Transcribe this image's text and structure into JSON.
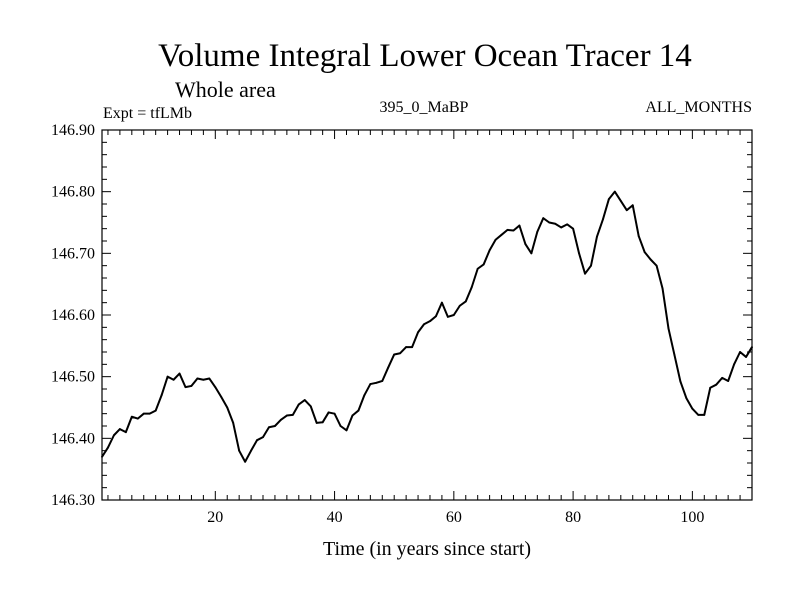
{
  "chart_data": {
    "type": "line",
    "title": "Volume Integral Lower Ocean Tracer 14",
    "subtitle": "Whole area",
    "expt_label": "Expt = tfLMb",
    "period_label": "395_0_MaBP",
    "months_label": "ALL_MONTHS",
    "xlabel": "Time (in years since start)",
    "ylabel": "",
    "xlim": [
      1,
      110
    ],
    "ylim": [
      146.3,
      146.9
    ],
    "x_ticks": [
      20,
      40,
      60,
      80,
      100
    ],
    "y_ticks": [
      146.3,
      146.4,
      146.5,
      146.6,
      146.7,
      146.8,
      146.9
    ],
    "x_tick_labels": [
      "20",
      "40",
      "60",
      "80",
      "100"
    ],
    "y_tick_labels": [
      "146.30",
      "146.40",
      "146.50",
      "146.60",
      "146.70",
      "146.80",
      "146.90"
    ],
    "series": [
      {
        "name": "Volume Integral Lower Ocean Tracer 14",
        "color": "#000000",
        "x": [
          1,
          2,
          3,
          4,
          5,
          6,
          7,
          8,
          9,
          10,
          11,
          12,
          13,
          14,
          15,
          16,
          17,
          18,
          19,
          20,
          21,
          22,
          23,
          24,
          25,
          26,
          27,
          28,
          29,
          30,
          31,
          32,
          33,
          34,
          35,
          36,
          37,
          38,
          39,
          40,
          41,
          42,
          43,
          44,
          45,
          46,
          47,
          48,
          49,
          50,
          51,
          52,
          53,
          54,
          55,
          56,
          57,
          58,
          59,
          60,
          61,
          62,
          63,
          64,
          65,
          66,
          67,
          68,
          69,
          70,
          71,
          72,
          73,
          74,
          75,
          76,
          77,
          78,
          79,
          80,
          81,
          82,
          83,
          84,
          85,
          86,
          87,
          88,
          89,
          90,
          91,
          92,
          93,
          94,
          95,
          96,
          97,
          98,
          99,
          100,
          101,
          102,
          103,
          104,
          105,
          106,
          107,
          108,
          109,
          110
        ],
        "values": [
          146.37,
          146.385,
          146.405,
          146.415,
          146.41,
          146.435,
          146.432,
          146.44,
          146.44,
          146.445,
          146.47,
          146.5,
          146.495,
          146.505,
          146.483,
          146.485,
          146.497,
          146.495,
          146.497,
          146.483,
          146.467,
          146.45,
          146.425,
          146.38,
          146.362,
          146.38,
          146.397,
          146.402,
          146.418,
          146.42,
          146.43,
          146.437,
          146.438,
          146.455,
          146.462,
          146.452,
          146.425,
          146.426,
          146.442,
          146.44,
          146.42,
          146.413,
          146.437,
          146.445,
          146.47,
          146.488,
          146.49,
          146.493,
          146.515,
          146.536,
          146.538,
          146.548,
          146.548,
          146.572,
          146.585,
          146.59,
          146.598,
          146.62,
          146.597,
          146.6,
          146.615,
          146.622,
          146.645,
          146.675,
          146.682,
          146.705,
          146.722,
          146.73,
          146.738,
          146.737,
          146.745,
          146.715,
          146.7,
          146.735,
          146.757,
          146.75,
          146.748,
          146.742,
          146.747,
          146.74,
          146.7,
          146.667,
          146.68,
          146.727,
          146.755,
          146.788,
          146.8,
          146.785,
          146.77,
          146.778,
          146.728,
          146.702,
          146.69,
          146.68,
          146.643,
          146.578,
          146.535,
          146.492,
          146.465,
          146.448,
          146.438,
          146.438,
          146.482,
          146.487,
          146.498,
          146.493,
          146.52,
          146.54,
          146.532,
          146.548
        ]
      }
    ]
  }
}
